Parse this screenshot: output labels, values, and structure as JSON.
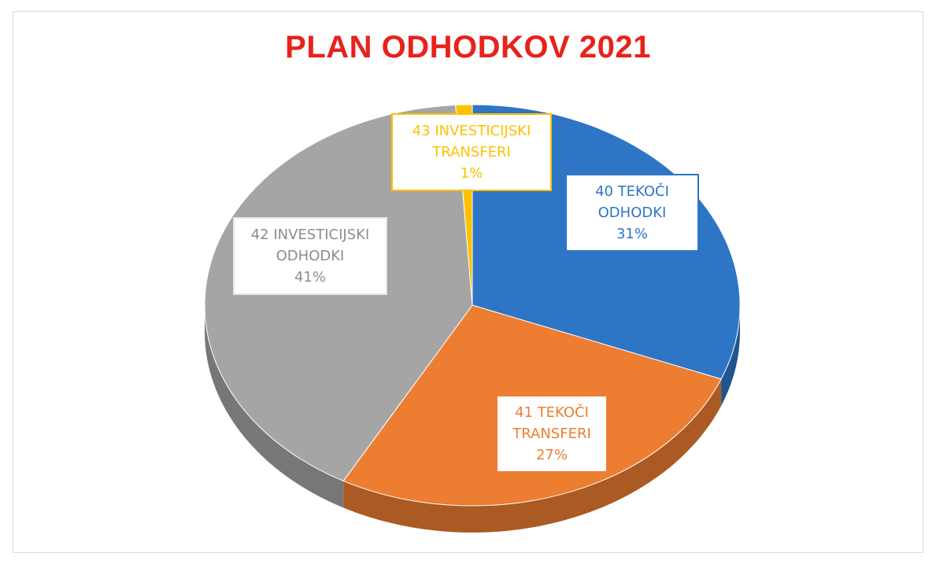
{
  "chart_data": {
    "type": "pie",
    "title": "PLAN ODHODKOV 2021",
    "three_d": true,
    "legend": "none",
    "slices": [
      {
        "line1": "40 TEKOČI",
        "line2": "ODHODKI",
        "percent_label": "31%",
        "value": 31,
        "color": "#2E75C6",
        "label_color": "#2E75C6",
        "label_border": "#2E75C6"
      },
      {
        "line1": "41 TEKOČI",
        "line2": "TRANSFERI",
        "percent_label": "27%",
        "value": 27,
        "color": "#ED7D31",
        "label_color": "#ED7D31",
        "label_border": "#ED7D31"
      },
      {
        "line1": "42 INVESTICIJSKI",
        "line2": "ODHODKI",
        "percent_label": "41%",
        "value": 41,
        "color": "#A5A5A5",
        "label_color": "#8C8C8C",
        "label_border": "#E5E5E5"
      },
      {
        "line1": "43 INVESTICIJSKI",
        "line2": "TRANSFERI",
        "percent_label": "1%",
        "value": 1,
        "color": "#FFC000",
        "label_color": "#FFC000",
        "label_border": "#FFC000"
      }
    ]
  },
  "colors": {
    "title": "#E8221B"
  }
}
